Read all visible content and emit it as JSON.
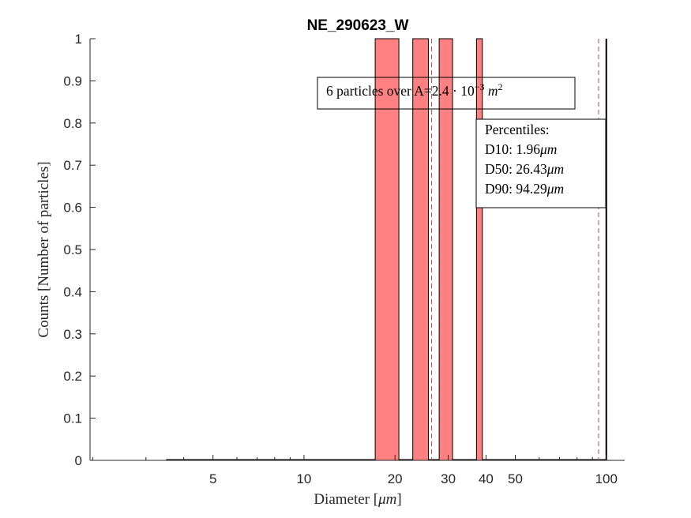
{
  "chart_data": {
    "type": "bar",
    "title": "NE_290623_W",
    "xlabel": {
      "text": "Diameter ",
      "unit": "μm"
    },
    "ylabel": "Counts [Number of particles]",
    "xscale": "log",
    "xlim": [
      1.96,
      115
    ],
    "ylim": [
      0,
      1
    ],
    "x_tick_values": [
      5,
      10,
      20,
      30,
      40,
      50,
      100
    ],
    "x_tick_labels": [
      "5",
      "10",
      "20",
      "30",
      "40",
      "50",
      "100"
    ],
    "y_tick_values": [
      0,
      0.1,
      0.2,
      0.3,
      0.4,
      0.5,
      0.6,
      0.7,
      0.8,
      0.9,
      1
    ],
    "y_tick_labels": [
      "0",
      "0.1",
      "0.2",
      "0.3",
      "0.4",
      "0.5",
      "0.6",
      "0.7",
      "0.8",
      "0.9",
      "1"
    ],
    "bars": [
      {
        "x0": 17.2,
        "x1": 20.6,
        "count": 1
      },
      {
        "x0": 22.9,
        "x1": 25.8,
        "count": 1
      },
      {
        "x0": 28.0,
        "x1": 31.0,
        "count": 1
      },
      {
        "x0": 37.2,
        "x1": 38.9,
        "count": 1
      }
    ],
    "baseline_range": [
      3.5,
      100
    ],
    "bar_color": "#ff8080",
    "percentile_lines": [
      1.96,
      26.43,
      94.29
    ],
    "percentile_line_color": "#c0504d",
    "max_line": 100,
    "grid": false,
    "annotation": {
      "prefix": "6 particles over A=2.4 · 10",
      "exponent": "−3",
      "unit": "m",
      "unit_exp": "2"
    },
    "percentiles_box": {
      "heading": "Percentiles:",
      "rows": [
        {
          "label": "D10:",
          "value": "1.96",
          "unit": "μm"
        },
        {
          "label": "D50:",
          "value": "26.43",
          "unit": "μm"
        },
        {
          "label": "D90:",
          "value": "94.29",
          "unit": "μm"
        }
      ]
    }
  }
}
